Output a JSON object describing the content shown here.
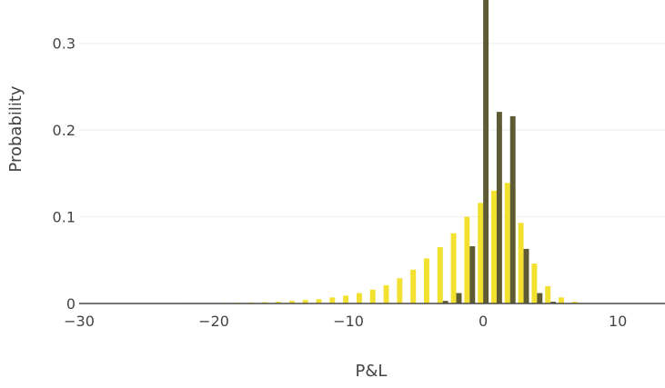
{
  "chart_data": {
    "type": "bar",
    "title": "",
    "xlabel": "P&L",
    "ylabel": "Probability",
    "xlim": [
      -30,
      13.5
    ],
    "ylim": [
      0,
      0.35
    ],
    "grid": true,
    "legend": "none",
    "x_ticks": [
      -30,
      -20,
      -10,
      0,
      10
    ],
    "x_tick_labels": [
      "−30",
      "−20",
      "−10",
      "0",
      "10"
    ],
    "y_ticks": [
      0,
      0.1,
      0.2,
      0.3
    ],
    "y_tick_labels": [
      "0",
      "0.1",
      "0.2",
      "0.3"
    ],
    "series": [
      {
        "color": "#f2e12f",
        "points": [
          {
            "x": -28,
            "y": 0.0003
          },
          {
            "x": -27,
            "y": 0.0003
          },
          {
            "x": -26,
            "y": 0.0004
          },
          {
            "x": -25,
            "y": 0.0004
          },
          {
            "x": -24,
            "y": 0.0005
          },
          {
            "x": -23,
            "y": 0.0005
          },
          {
            "x": -22,
            "y": 0.0006
          },
          {
            "x": -21,
            "y": 0.0007
          },
          {
            "x": -20,
            "y": 0.0008
          },
          {
            "x": -19,
            "y": 0.0009
          },
          {
            "x": -18,
            "y": 0.001
          },
          {
            "x": -17,
            "y": 0.0012
          },
          {
            "x": -16,
            "y": 0.0015
          },
          {
            "x": -15,
            "y": 0.002
          },
          {
            "x": -14,
            "y": 0.003
          },
          {
            "x": -13,
            "y": 0.004
          },
          {
            "x": -12,
            "y": 0.005
          },
          {
            "x": -11,
            "y": 0.007
          },
          {
            "x": -10,
            "y": 0.009
          },
          {
            "x": -9,
            "y": 0.012
          },
          {
            "x": -8,
            "y": 0.016
          },
          {
            "x": -7,
            "y": 0.021
          },
          {
            "x": -6,
            "y": 0.029
          },
          {
            "x": -5,
            "y": 0.039
          },
          {
            "x": -4,
            "y": 0.052
          },
          {
            "x": -3,
            "y": 0.065
          },
          {
            "x": -2,
            "y": 0.081
          },
          {
            "x": -1,
            "y": 0.1
          },
          {
            "x": 0,
            "y": 0.116
          },
          {
            "x": 1,
            "y": 0.13
          },
          {
            "x": 2,
            "y": 0.139
          },
          {
            "x": 3,
            "y": 0.093
          },
          {
            "x": 4,
            "y": 0.046
          },
          {
            "x": 5,
            "y": 0.02
          },
          {
            "x": 6,
            "y": 0.007
          },
          {
            "x": 7,
            "y": 0.002
          }
        ]
      },
      {
        "color": "#5e5a33",
        "points": [
          {
            "x": -3,
            "y": 0.003
          },
          {
            "x": -2,
            "y": 0.012
          },
          {
            "x": -1,
            "y": 0.066
          },
          {
            "x": 0,
            "y": 0.352
          },
          {
            "x": 1,
            "y": 0.221
          },
          {
            "x": 2,
            "y": 0.216
          },
          {
            "x": 3,
            "y": 0.063
          },
          {
            "x": 4,
            "y": 0.012
          },
          {
            "x": 5,
            "y": 0.002
          }
        ]
      }
    ]
  }
}
